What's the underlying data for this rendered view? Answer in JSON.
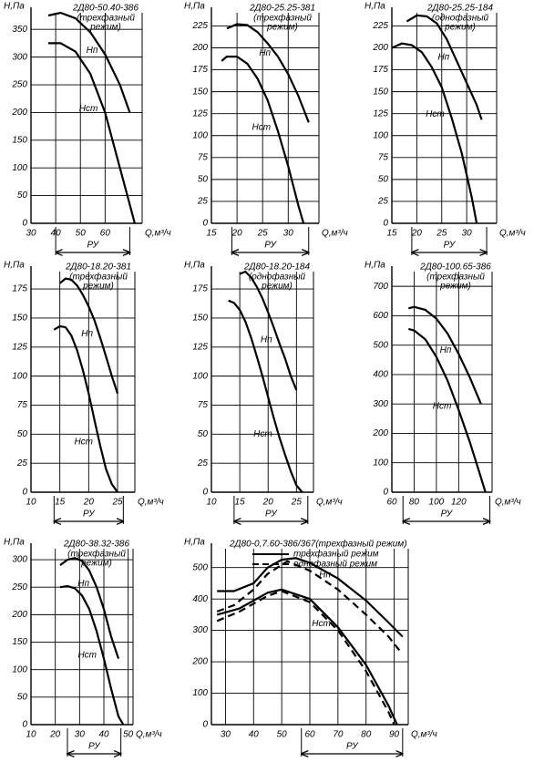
{
  "chart_data": [
    {
      "type": "line",
      "title": "2Д80-50.40-386",
      "subtitle_lines": [
        "(трехфазный",
        "режим)"
      ],
      "ylabel": "Н,Па",
      "xlabel": "Q,м³/ч",
      "xlim": [
        30,
        75
      ],
      "xticks": [
        30,
        40,
        50,
        60
      ],
      "ylim": [
        0,
        380
      ],
      "yticks": [
        0,
        50,
        100,
        150,
        200,
        250,
        300,
        350
      ],
      "grid": true,
      "series": [
        {
          "name": "Нп",
          "color": "#000000",
          "dash": "solid",
          "x": [
            37,
            42,
            48,
            54,
            60,
            66,
            70
          ],
          "values": [
            375,
            380,
            370,
            345,
            305,
            250,
            200
          ]
        },
        {
          "name": "Нст",
          "color": "#000000",
          "dash": "solid",
          "x": [
            37,
            42,
            48,
            54,
            60,
            66,
            72
          ],
          "values": [
            325,
            325,
            310,
            270,
            200,
            100,
            0
          ]
        }
      ],
      "ru": {
        "label": "РУ",
        "range": [
          40,
          70
        ]
      }
    },
    {
      "type": "line",
      "title": "2Д80-25.25-381",
      "subtitle_lines": [
        "(трехфазный",
        "режим)"
      ],
      "ylabel": "Н,Па",
      "xlabel": "Q,м³/ч",
      "xlim": [
        15,
        36
      ],
      "xticks": [
        15,
        20,
        25,
        30
      ],
      "ylim": [
        0,
        240
      ],
      "yticks": [
        0,
        25,
        50,
        75,
        100,
        125,
        150,
        175,
        200,
        225
      ],
      "grid": true,
      "series": [
        {
          "name": "Нп",
          "color": "#000000",
          "dash": "solid",
          "x": [
            18,
            20,
            22,
            24,
            26,
            28,
            30,
            32,
            34
          ],
          "values": [
            222,
            227,
            226,
            218,
            205,
            190,
            170,
            145,
            115
          ]
        },
        {
          "name": "Нст",
          "color": "#000000",
          "dash": "solid",
          "x": [
            17,
            18,
            20,
            22,
            24,
            26,
            28,
            30,
            32,
            33
          ],
          "values": [
            185,
            190,
            190,
            182,
            165,
            140,
            105,
            65,
            20,
            0
          ]
        }
      ],
      "ru": {
        "label": "РУ",
        "range": [
          19,
          34
        ]
      }
    },
    {
      "type": "line",
      "title": "2Д80-25.25-184",
      "subtitle_lines": [
        "(однофазный",
        "режим)"
      ],
      "ylabel": "Н,Па",
      "xlabel": "Q,м³/ч",
      "xlim": [
        15,
        36
      ],
      "xticks": [
        15,
        20,
        25,
        30
      ],
      "ylim": [
        0,
        240
      ],
      "yticks": [
        0,
        25,
        50,
        75,
        100,
        125,
        150,
        175,
        200,
        225
      ],
      "grid": true,
      "series": [
        {
          "name": "Нп",
          "color": "#000000",
          "dash": "solid",
          "x": [
            18,
            20,
            22,
            24,
            26,
            28,
            30,
            32,
            33
          ],
          "values": [
            230,
            237,
            236,
            228,
            210,
            185,
            160,
            135,
            118
          ]
        },
        {
          "name": "Нст",
          "color": "#000000",
          "dash": "solid",
          "x": [
            15,
            17,
            19,
            21,
            23,
            25,
            27,
            29,
            31,
            32
          ],
          "values": [
            200,
            205,
            203,
            195,
            178,
            155,
            120,
            80,
            30,
            0
          ]
        }
      ],
      "ru": {
        "label": "РУ",
        "range": [
          19,
          34
        ]
      }
    },
    {
      "type": "line",
      "title": "2Д80-18.20-381",
      "subtitle_lines": [
        "(трехфазный",
        "режим)"
      ],
      "ylabel": "Н,Па",
      "xlabel": "Q,м³/ч",
      "xlim": [
        10,
        28
      ],
      "xticks": [
        10,
        15,
        20,
        25
      ],
      "ylim": [
        0,
        190
      ],
      "yticks": [
        0,
        25,
        50,
        75,
        100,
        125,
        150,
        175
      ],
      "grid": true,
      "series": [
        {
          "name": "Нп",
          "color": "#000000",
          "dash": "solid",
          "x": [
            15,
            16,
            17,
            18,
            19,
            20,
            21,
            22,
            23,
            24,
            25
          ],
          "values": [
            180,
            184,
            183,
            178,
            170,
            160,
            148,
            133,
            117,
            100,
            85
          ]
        },
        {
          "name": "Нст",
          "color": "#000000",
          "dash": "solid",
          "x": [
            14,
            15,
            16,
            17,
            18,
            19,
            20,
            21,
            22,
            23,
            24,
            25
          ],
          "values": [
            140,
            143,
            142,
            135,
            122,
            105,
            85,
            62,
            40,
            20,
            7,
            0
          ]
        }
      ],
      "ru": {
        "label": "РУ",
        "range": [
          14,
          26
        ]
      }
    },
    {
      "type": "line",
      "title": "2Д80-18.20-184",
      "subtitle_lines": [
        "(однофазный",
        "режим)"
      ],
      "ylabel": "Н,Па",
      "xlabel": "Q,м³/ч",
      "xlim": [
        10,
        28
      ],
      "xticks": [
        10,
        15,
        20,
        25
      ],
      "ylim": [
        0,
        190
      ],
      "yticks": [
        0,
        25,
        50,
        75,
        100,
        125,
        150,
        175
      ],
      "grid": true,
      "series": [
        {
          "name": "Нп",
          "color": "#000000",
          "dash": "solid",
          "x": [
            15,
            16,
            17,
            18,
            19,
            20,
            21,
            22,
            23,
            24,
            25
          ],
          "values": [
            188,
            190,
            185,
            177,
            167,
            155,
            142,
            128,
            115,
            100,
            88
          ]
        },
        {
          "name": "Нст",
          "color": "#000000",
          "dash": "solid",
          "x": [
            13,
            14,
            15,
            16,
            17,
            18,
            19,
            20,
            21,
            22,
            23,
            24,
            25,
            26
          ],
          "values": [
            165,
            163,
            157,
            147,
            133,
            117,
            100,
            82,
            64,
            47,
            32,
            18,
            6,
            0
          ]
        }
      ],
      "ru": {
        "label": "РУ",
        "range": [
          14,
          27
        ]
      }
    },
    {
      "type": "line",
      "title": "2Д80-100.65-386",
      "subtitle_lines": [
        "(трехфазный",
        "режим)"
      ],
      "ylabel": "Н,Па",
      "xlabel": "Q,м³/ч",
      "xlim": [
        60,
        150
      ],
      "xticks": [
        60,
        80,
        100,
        120
      ],
      "ylim": [
        0,
        750
      ],
      "yticks": [
        0,
        100,
        200,
        300,
        400,
        500,
        600,
        700
      ],
      "grid": true,
      "series": [
        {
          "name": "Нп",
          "color": "#000000",
          "dash": "solid",
          "x": [
            75,
            80,
            90,
            100,
            110,
            120,
            130,
            140
          ],
          "values": [
            625,
            630,
            620,
            590,
            540,
            470,
            390,
            300
          ]
        },
        {
          "name": "Нст",
          "color": "#000000",
          "dash": "solid",
          "x": [
            75,
            80,
            90,
            100,
            110,
            120,
            130,
            140,
            144
          ],
          "values": [
            555,
            550,
            520,
            460,
            380,
            280,
            170,
            50,
            0
          ]
        }
      ],
      "ru": {
        "label": "РУ",
        "range": [
          70,
          148
        ]
      }
    },
    {
      "type": "line",
      "title": "2Д80-38.32-386",
      "subtitle_lines": [
        "(трехфазный",
        "режим)"
      ],
      "ylabel": "Н,Па",
      "xlabel": "Q,м³/ч",
      "xlim": [
        10,
        52
      ],
      "xticks": [
        10,
        20,
        30,
        40,
        50
      ],
      "ylim": [
        0,
        320
      ],
      "yticks": [
        0,
        50,
        100,
        150,
        200,
        250,
        300
      ],
      "grid": true,
      "series": [
        {
          "name": "Нп",
          "color": "#000000",
          "dash": "solid",
          "x": [
            22,
            25,
            28,
            31,
            34,
            37,
            40,
            43,
            46
          ],
          "values": [
            290,
            300,
            303,
            298,
            280,
            250,
            210,
            160,
            120
          ]
        },
        {
          "name": "Нст",
          "color": "#000000",
          "dash": "solid",
          "x": [
            22,
            25,
            28,
            31,
            34,
            37,
            40,
            43,
            46,
            48
          ],
          "values": [
            250,
            252,
            248,
            235,
            210,
            170,
            120,
            65,
            15,
            0
          ]
        }
      ],
      "ru": {
        "label": "РУ",
        "range": [
          25,
          47
        ]
      }
    },
    {
      "type": "line",
      "title": "2Д80-0,7.60-386/367(трехфазный режим)",
      "ylabel": "Н,Па",
      "xlabel": "Q,м³/ч",
      "xlim": [
        25,
        95
      ],
      "xticks": [
        30,
        40,
        50,
        60,
        70,
        80,
        90
      ],
      "ylim": [
        0,
        560
      ],
      "yticks": [
        0,
        100,
        200,
        300,
        400,
        500
      ],
      "grid": true,
      "legend": [
        {
          "label": "трехфазный режим",
          "dash": "solid"
        },
        {
          "label": "однофазный режим",
          "dash": "dashed"
        }
      ],
      "series": [
        {
          "name": "Нп",
          "color": "#000000",
          "dash": "solid",
          "x": [
            27,
            33,
            40,
            45,
            50,
            55,
            60,
            70,
            80,
            88,
            93
          ],
          "values": [
            425,
            425,
            450,
            500,
            525,
            530,
            515,
            465,
            395,
            325,
            280
          ]
        },
        {
          "color": "#000000",
          "dash": "dashed",
          "x": [
            27,
            33,
            40,
            45,
            52,
            60,
            70,
            80,
            88,
            92
          ],
          "values": [
            360,
            380,
            430,
            480,
            520,
            490,
            430,
            350,
            280,
            235
          ]
        },
        {
          "name": "Нст",
          "color": "#000000",
          "dash": "solid",
          "x": [
            27,
            35,
            45,
            50,
            60,
            70,
            80,
            88,
            91
          ],
          "values": [
            350,
            370,
            420,
            430,
            400,
            310,
            190,
            60,
            0
          ]
        },
        {
          "color": "#000000",
          "dash": "dashed",
          "x": [
            27,
            35,
            45,
            50,
            60,
            70,
            80,
            88,
            90
          ],
          "values": [
            330,
            360,
            410,
            425,
            390,
            300,
            170,
            40,
            0
          ]
        }
      ],
      "ru": {
        "label": "РУ",
        "range": [
          57,
          93
        ]
      }
    }
  ]
}
